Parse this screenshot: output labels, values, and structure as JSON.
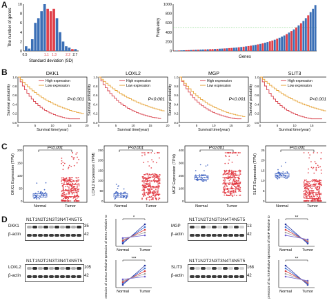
{
  "panel_letters": [
    "A",
    "B",
    "C",
    "D"
  ],
  "panelA": {
    "hist": {
      "ylabel": "The number of genes",
      "xlabel": "Standard deviation (SD)",
      "yticks": [
        "10",
        "8",
        "6",
        "4",
        "2",
        "0"
      ],
      "xticks": [
        "0.5",
        "1.1",
        "1.3",
        "2.2",
        "2.7"
      ],
      "bars": [
        {
          "v": 1,
          "c": "#3b6fb6"
        },
        {
          "v": 0.5,
          "c": "#3b6fb6"
        },
        {
          "v": 2.5,
          "c": "#3b6fb6"
        },
        {
          "v": 6,
          "c": "#3b6fb6"
        },
        {
          "v": 7,
          "c": "#3b6fb6"
        },
        {
          "v": 8.5,
          "c": "#3b6fb6"
        },
        {
          "v": 10,
          "c": "#3b6fb6"
        },
        {
          "v": 9,
          "c": "#e0404a"
        },
        {
          "v": 8.5,
          "c": "#e0404a"
        },
        {
          "v": 9,
          "c": "#e0404a"
        },
        {
          "v": 7,
          "c": "#3b6fb6"
        },
        {
          "v": 4,
          "c": "#3b6fb6"
        },
        {
          "v": 2,
          "c": "#3b6fb6"
        },
        {
          "v": 1,
          "c": "#3b6fb6"
        },
        {
          "v": 0.7,
          "c": "#3b6fb6"
        },
        {
          "v": 0.4,
          "c": "#e0404a"
        },
        {
          "v": 0.4,
          "c": "#3b6fb6"
        }
      ]
    },
    "freq": {
      "ylabel": "Frequency",
      "xlabel": "Genes",
      "yticks": [
        "1000",
        "800",
        "600",
        "400",
        "200",
        "0"
      ],
      "threshold": 500,
      "values": [
        5,
        8,
        10,
        12,
        14,
        16,
        18,
        20,
        22,
        24,
        26,
        28,
        30,
        32,
        35,
        38,
        40,
        42,
        45,
        48,
        50,
        53,
        56,
        60,
        64,
        68,
        72,
        78,
        84,
        90,
        97,
        104,
        112,
        120,
        130,
        140,
        150,
        162,
        175,
        190,
        205,
        222,
        240,
        260,
        282,
        305,
        330,
        360,
        392,
        425,
        460,
        500,
        545,
        590,
        640,
        700,
        760,
        830,
        900,
        980
      ],
      "colors": "rbrbbrrbrbrbbrbrrbrbbrbrrbbrbrbrrbbrbrbbrrbrbbbrbrbrbrbbrb"
    }
  },
  "panelB": {
    "xlabel": "Survival time(year)",
    "ylabel": "Survival probability",
    "legend_high": "High expression",
    "legend_low": "Low expression",
    "pvalue": "P<0.001",
    "genes": [
      "DKK1",
      "LOXL2",
      "MGP",
      "SLIT3"
    ],
    "xticks": [
      "0",
      "5",
      "10",
      "15",
      "20"
    ],
    "yticks": [
      "1.0",
      "0.8",
      "0.6",
      "0.4",
      "0.2",
      "0.0"
    ],
    "colors": {
      "high": "#d9424c",
      "low": "#e6a133"
    }
  },
  "panelC": {
    "pvalue": "P<0.001",
    "categories": [
      "Normal",
      "Tumor"
    ],
    "plots": [
      {
        "ylabel": "DKK1 Expression (TPM)",
        "yticks": [
          "200",
          "150",
          "100",
          "50",
          "0"
        ],
        "normal": 0.12,
        "tumor": 0.22
      },
      {
        "ylabel": "LOXL2 Expression (TPM)",
        "yticks": [
          "250",
          "200",
          "150",
          "100",
          "50",
          "0"
        ],
        "normal": 0.12,
        "tumor": 0.3
      },
      {
        "ylabel": "MGP Expression (TPM)",
        "yticks": [
          "400",
          "300",
          "200",
          "100",
          "0"
        ],
        "normal": 0.5,
        "tumor": 0.38
      },
      {
        "ylabel": "SLIT3 Expression (TPM)",
        "yticks": [
          "25",
          "20",
          "15",
          "10",
          "5",
          "0"
        ],
        "normal": 0.55,
        "tumor": 0.18
      }
    ],
    "colors": {
      "normal": "#3b5fc0",
      "tumor": "#e0303a"
    }
  },
  "panelD": {
    "lanes": "N1T1N2T2N3T3N4T4N5T5",
    "actin": "β-actin",
    "blots": [
      {
        "gene": "DKK1",
        "kda": "35",
        "actin_kda": "42",
        "ylabel": "Expression of DKK1 Relative to β-actin",
        "sig": "*",
        "dir": "up"
      },
      {
        "gene": "MGP",
        "kda": "13",
        "actin_kda": "42",
        "ylabel": "Expression of MGP Relative to β-actin",
        "sig": "**",
        "dir": "down"
      },
      {
        "gene": "LOXL2",
        "kda": "105",
        "actin_kda": "42",
        "ylabel": "Expression of LOXL2 Relative to β-actin",
        "sig": "***",
        "dir": "up"
      },
      {
        "gene": "SLIT3",
        "kda": "168",
        "actin_kda": "42",
        "ylabel": "Expression of SLIT3 Relative to β-actin",
        "sig": "**",
        "dir": "down"
      }
    ],
    "categories": [
      "Normal",
      "Tumor"
    ]
  }
}
